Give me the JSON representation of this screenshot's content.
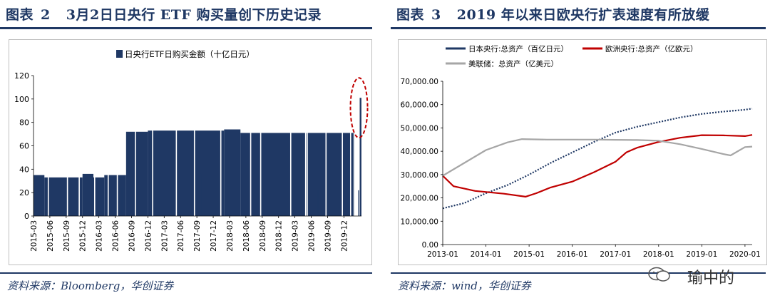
{
  "left_panel": {
    "title_label": "图表",
    "title_num": "2",
    "title_text": "3月2日日央行 ETF 购买量创下历史记录",
    "source": "资料来源：Bloomberg，华创证券"
  },
  "right_panel": {
    "title_label": "图表",
    "title_num": "3",
    "title_text": "2019 年以来日欧央行扩表速度有所放缓",
    "source": "资料来源：wind，华创证券"
  },
  "watermark": {
    "text": "瑜中的"
  },
  "chart_data": [
    {
      "type": "bar",
      "legend": [
        "日央行ETF日购买金额（十亿日元）"
      ],
      "series_color": "#1f3864",
      "highlight_color": "#c00000",
      "ylim": [
        0,
        120
      ],
      "yticks": [
        "0",
        "20",
        "40",
        "60",
        "80",
        "100",
        "120"
      ],
      "xticks": [
        "2015-03",
        "2015-06",
        "2015-09",
        "2015-12",
        "2016-03",
        "2016-06",
        "2016-09",
        "2016-12",
        "2017-03",
        "2017-06",
        "2017-09",
        "2017-12",
        "2018-03",
        "2018-06",
        "2018-09",
        "2018-12",
        "2019-03",
        "2019-06",
        "2019-09",
        "2019-12"
      ],
      "grid": false,
      "periods": [
        {
          "start": "2015-03",
          "end": "2015-05",
          "value": 35
        },
        {
          "start": "2015-05",
          "end": "2015-12",
          "value": 33
        },
        {
          "start": "2015-12",
          "end": "2016-02",
          "value": 36
        },
        {
          "start": "2016-02",
          "end": "2016-04",
          "value": 33
        },
        {
          "start": "2016-04",
          "end": "2016-08",
          "value": 35
        },
        {
          "start": "2016-08",
          "end": "2016-12",
          "value": 72
        },
        {
          "start": "2016-12",
          "end": "2018-02",
          "value": 73
        },
        {
          "start": "2018-02",
          "end": "2018-05",
          "value": 74
        },
        {
          "start": "2018-05",
          "end": "2020-02",
          "value": 71
        }
      ],
      "record": {
        "date": "2020-03-02",
        "value": 101
      },
      "annotation": "dashed red ellipse around 2020-03 record"
    },
    {
      "type": "line",
      "xlim": [
        "2013-01",
        "2020-01"
      ],
      "ylim": [
        0,
        70000
      ],
      "yticks": [
        "0.00",
        "10,000.00",
        "20,000.00",
        "30,000.00",
        "40,000.00",
        "50,000.00",
        "60,000.00",
        "70,000.00"
      ],
      "xticks": [
        "2013-01",
        "2014-01",
        "2015-01",
        "2016-01",
        "2017-01",
        "2018-01",
        "2019-01",
        "2020-01"
      ],
      "grid": false,
      "legend_position": "top",
      "series": [
        {
          "name": "日本央行:总资产（百亿日元）",
          "color": "#1f3864",
          "style": "dotted",
          "x": [
            "2013-01",
            "2013-07",
            "2014-01",
            "2014-07",
            "2015-01",
            "2015-07",
            "2016-01",
            "2016-07",
            "2017-01",
            "2017-07",
            "2018-01",
            "2018-07",
            "2019-01",
            "2019-07",
            "2020-01",
            "2020-03"
          ],
          "y": [
            15500,
            17800,
            22000,
            25500,
            30000,
            35000,
            39500,
            44000,
            48000,
            50500,
            52500,
            54500,
            56000,
            57000,
            57800,
            58300
          ]
        },
        {
          "name": "欧洲央行:总资产（亿欧元）",
          "color": "#c00000",
          "style": "solid",
          "x": [
            "2013-01",
            "2013-04",
            "2013-10",
            "2014-06",
            "2014-12",
            "2015-03",
            "2015-07",
            "2016-01",
            "2016-07",
            "2017-01",
            "2017-04",
            "2017-07",
            "2018-01",
            "2018-07",
            "2019-01",
            "2019-07",
            "2020-01",
            "2020-03"
          ],
          "y": [
            29500,
            25000,
            23000,
            21800,
            20500,
            22000,
            24500,
            27000,
            31000,
            35500,
            39500,
            41500,
            44000,
            45800,
            46900,
            46800,
            46500,
            47000
          ]
        },
        {
          "name": "美联储：总资产（亿美元）",
          "color": "#a6a6a6",
          "style": "solid",
          "x": [
            "2013-01",
            "2013-07",
            "2014-01",
            "2014-07",
            "2014-11",
            "2015-06",
            "2016-01",
            "2016-07",
            "2017-01",
            "2017-07",
            "2018-01",
            "2018-07",
            "2019-01",
            "2019-07",
            "2019-09",
            "2020-01",
            "2020-03"
          ],
          "y": [
            29500,
            35000,
            40500,
            43800,
            45200,
            45000,
            45000,
            45000,
            44900,
            44800,
            44500,
            43000,
            41000,
            38800,
            38200,
            41800,
            42000
          ]
        }
      ]
    }
  ]
}
